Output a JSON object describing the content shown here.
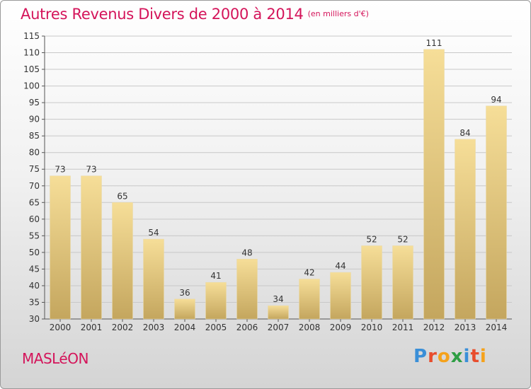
{
  "header": {
    "title": "Autres Revenus Divers de 2000 à 2014",
    "unit": "(en milliers d'€)"
  },
  "commune": "MASLéON",
  "logo": {
    "text": "Proxiti",
    "letters": [
      {
        "char": "P",
        "color": "#3a8fd8"
      },
      {
        "char": "r",
        "color": "#e84d2d"
      },
      {
        "char": "o",
        "color": "#f5a21b"
      },
      {
        "char": "x",
        "color": "#2e9e44"
      },
      {
        "char": "i",
        "color": "#3a8fd8"
      },
      {
        "char": "t",
        "color": "#e84d2d"
      },
      {
        "char": "i",
        "color": "#f5a21b"
      }
    ]
  },
  "colors": {
    "title": "#d4145a",
    "bar_light": "#f6de98",
    "bar_dark": "#c4a65e",
    "grid": "#c8c8c8",
    "text": "#333333"
  },
  "chart_data": {
    "type": "bar",
    "title": "Autres Revenus Divers de 2000 à 2014",
    "categories": [
      "2000",
      "2001",
      "2002",
      "2003",
      "2004",
      "2005",
      "2006",
      "2007",
      "2008",
      "2009",
      "2010",
      "2011",
      "2012",
      "2013",
      "2014"
    ],
    "values": [
      73,
      73,
      65,
      54,
      36,
      41,
      48,
      34,
      42,
      44,
      52,
      52,
      111,
      84,
      94
    ],
    "ylim": [
      30,
      115
    ],
    "yticks": [
      30,
      35,
      40,
      45,
      50,
      55,
      60,
      65,
      70,
      75,
      80,
      85,
      90,
      95,
      100,
      105,
      110,
      115
    ],
    "grid": true,
    "data_labels": true
  }
}
